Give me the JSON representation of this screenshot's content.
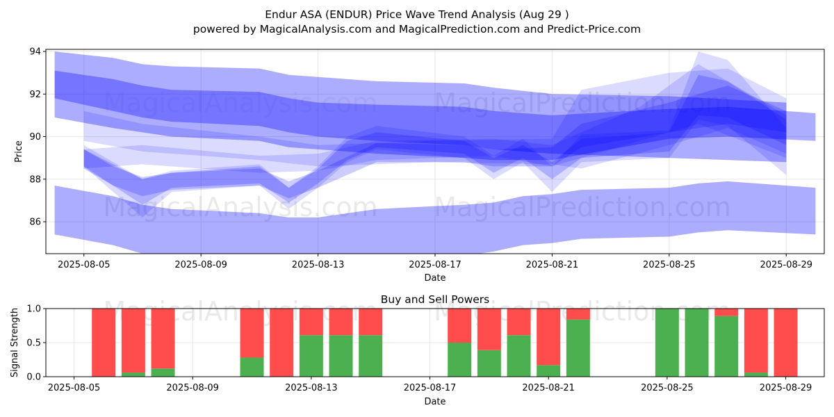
{
  "title_line1": "Endur ASA (ENDUR) Price Wave Trend Analysis (Aug 29 )",
  "title_line2": "powered by MagicalAnalysis.com and MagicalPrediction.com and Predict-Price.com",
  "watermarks": [
    "MagicalAnalysis.com",
    "MagicalPrediction.com"
  ],
  "colors": {
    "band": "#0000ff",
    "buy": "#4caf50",
    "sell": "#ff4d4d"
  },
  "chart_data": [
    {
      "type": "area",
      "title": "",
      "xlabel": "Date",
      "ylabel": "Price",
      "x_ticks": [
        "2025-08-05",
        "2025-08-09",
        "2025-08-13",
        "2025-08-17",
        "2025-08-21",
        "2025-08-25",
        "2025-08-29"
      ],
      "y_ticks": [
        86,
        88,
        90,
        92,
        94
      ],
      "xlim": [
        "2025-08-04",
        "2025-08-30"
      ],
      "ylim": [
        84.5,
        94.1
      ],
      "grid": true,
      "series": [
        {
          "opacity": 0.32,
          "points": [
            {
              "x": "2025-08-04",
              "lo": 91.8,
              "hi": 94.0
            },
            {
              "x": "2025-08-06",
              "lo": 91.2,
              "hi": 93.7
            },
            {
              "x": "2025-08-07",
              "lo": 90.9,
              "hi": 93.4
            },
            {
              "x": "2025-08-08",
              "lo": 90.7,
              "hi": 93.3
            },
            {
              "x": "2025-08-11",
              "lo": 90.5,
              "hi": 93.2
            },
            {
              "x": "2025-08-12",
              "lo": 90.2,
              "hi": 92.9
            },
            {
              "x": "2025-08-13",
              "lo": 90.0,
              "hi": 92.8
            },
            {
              "x": "2025-08-15",
              "lo": 89.8,
              "hi": 92.6
            },
            {
              "x": "2025-08-18",
              "lo": 89.6,
              "hi": 92.5
            },
            {
              "x": "2025-08-19",
              "lo": 89.4,
              "hi": 92.3
            },
            {
              "x": "2025-08-21",
              "lo": 89.2,
              "hi": 92.0
            },
            {
              "x": "2025-08-25",
              "lo": 89.0,
              "hi": 91.9
            },
            {
              "x": "2025-08-29",
              "lo": 88.8,
              "hi": 91.6
            }
          ]
        },
        {
          "opacity": 0.32,
          "points": [
            {
              "x": "2025-08-04",
              "lo": 90.9,
              "hi": 93.1
            },
            {
              "x": "2025-08-06",
              "lo": 90.4,
              "hi": 92.7
            },
            {
              "x": "2025-08-07",
              "lo": 90.2,
              "hi": 92.4
            },
            {
              "x": "2025-08-08",
              "lo": 90.0,
              "hi": 92.2
            },
            {
              "x": "2025-08-11",
              "lo": 89.8,
              "hi": 92.1
            },
            {
              "x": "2025-08-12",
              "lo": 89.5,
              "hi": 91.8
            },
            {
              "x": "2025-08-13",
              "lo": 89.4,
              "hi": 91.6
            },
            {
              "x": "2025-08-15",
              "lo": 89.2,
              "hi": 91.5
            },
            {
              "x": "2025-08-18",
              "lo": 89.0,
              "hi": 91.4
            },
            {
              "x": "2025-08-19",
              "lo": 88.9,
              "hi": 91.2
            },
            {
              "x": "2025-08-21",
              "lo": 88.9,
              "hi": 91.0
            },
            {
              "x": "2025-08-25",
              "lo": 89.9,
              "hi": 91.3
            },
            {
              "x": "2025-08-27",
              "lo": 90.0,
              "hi": 91.4
            },
            {
              "x": "2025-08-30",
              "lo": 89.8,
              "hi": 91.1
            }
          ]
        },
        {
          "opacity": 0.32,
          "points": [
            {
              "x": "2025-08-04",
              "lo": 85.4,
              "hi": 87.7
            },
            {
              "x": "2025-08-06",
              "lo": 84.9,
              "hi": 87.2
            },
            {
              "x": "2025-08-07",
              "lo": 84.5,
              "hi": 86.8
            },
            {
              "x": "2025-08-08",
              "lo": 84.3,
              "hi": 86.6
            },
            {
              "x": "2025-08-11",
              "lo": 84.2,
              "hi": 86.4
            },
            {
              "x": "2025-08-12",
              "lo": 84.0,
              "hi": 86.2
            },
            {
              "x": "2025-08-13",
              "lo": 84.0,
              "hi": 86.2
            },
            {
              "x": "2025-08-15",
              "lo": 84.2,
              "hi": 86.6
            },
            {
              "x": "2025-08-18",
              "lo": 84.4,
              "hi": 86.8
            },
            {
              "x": "2025-08-19",
              "lo": 84.6,
              "hi": 86.9
            },
            {
              "x": "2025-08-20",
              "lo": 84.9,
              "hi": 87.2
            },
            {
              "x": "2025-08-21",
              "lo": 85.0,
              "hi": 87.3
            },
            {
              "x": "2025-08-22",
              "lo": 85.2,
              "hi": 87.5
            },
            {
              "x": "2025-08-25",
              "lo": 85.3,
              "hi": 87.6
            },
            {
              "x": "2025-08-26",
              "lo": 85.5,
              "hi": 87.8
            },
            {
              "x": "2025-08-27",
              "lo": 85.6,
              "hi": 87.9
            },
            {
              "x": "2025-08-30",
              "lo": 85.4,
              "hi": 87.6
            }
          ]
        },
        {
          "opacity": 0.14,
          "points": [
            {
              "x": "2025-08-05",
              "lo": 89.8,
              "hi": 91.2
            },
            {
              "x": "2025-08-07",
              "lo": 89.3,
              "hi": 90.6
            },
            {
              "x": "2025-08-11",
              "lo": 88.9,
              "hi": 90.0
            },
            {
              "x": "2025-08-13",
              "lo": 88.6,
              "hi": 89.6
            },
            {
              "x": "2025-08-17",
              "lo": 88.8,
              "hi": 89.8
            },
            {
              "x": "2025-08-21",
              "lo": 88.7,
              "hi": 89.9
            },
            {
              "x": "2025-08-22",
              "lo": 88.5,
              "hi": 92.2
            },
            {
              "x": "2025-08-25",
              "lo": 89.6,
              "hi": 93.0
            },
            {
              "x": "2025-08-27",
              "lo": 90.4,
              "hi": 93.2
            },
            {
              "x": "2025-08-29",
              "lo": 89.2,
              "hi": 91.8
            }
          ]
        },
        {
          "opacity": 0.14,
          "points": [
            {
              "x": "2025-08-05",
              "lo": 88.5,
              "hi": 89.4
            },
            {
              "x": "2025-08-07",
              "lo": 88.7,
              "hi": 89.6
            },
            {
              "x": "2025-08-11",
              "lo": 88.3,
              "hi": 89.1
            },
            {
              "x": "2025-08-13",
              "lo": 88.4,
              "hi": 89.2
            },
            {
              "x": "2025-08-15",
              "lo": 88.9,
              "hi": 89.8
            },
            {
              "x": "2025-08-19",
              "lo": 89.1,
              "hi": 89.9
            },
            {
              "x": "2025-08-21",
              "lo": 88.6,
              "hi": 89.6
            },
            {
              "x": "2025-08-24",
              "lo": 89.8,
              "hi": 91.4
            },
            {
              "x": "2025-08-26",
              "lo": 90.6,
              "hi": 93.4
            },
            {
              "x": "2025-08-29",
              "lo": 89.0,
              "hi": 91.0
            }
          ]
        },
        {
          "opacity": 0.14,
          "points": [
            {
              "x": "2025-08-05",
              "lo": 88.6,
              "hi": 89.6
            },
            {
              "x": "2025-08-07",
              "lo": 86.2,
              "hi": 88.0
            },
            {
              "x": "2025-08-08",
              "lo": 87.4,
              "hi": 88.4
            },
            {
              "x": "2025-08-11",
              "lo": 87.7,
              "hi": 88.7
            },
            {
              "x": "2025-08-12",
              "lo": 86.6,
              "hi": 87.6
            },
            {
              "x": "2025-08-13",
              "lo": 87.6,
              "hi": 88.6
            },
            {
              "x": "2025-08-14",
              "lo": 88.8,
              "hi": 90.0
            },
            {
              "x": "2025-08-15",
              "lo": 89.4,
              "hi": 90.5
            },
            {
              "x": "2025-08-18",
              "lo": 89.0,
              "hi": 90.0
            },
            {
              "x": "2025-08-19",
              "lo": 88.0,
              "hi": 89.1
            },
            {
              "x": "2025-08-20",
              "lo": 88.8,
              "hi": 89.9
            },
            {
              "x": "2025-08-21",
              "lo": 87.4,
              "hi": 88.6
            },
            {
              "x": "2025-08-22",
              "lo": 88.8,
              "hi": 90.1
            },
            {
              "x": "2025-08-25",
              "lo": 89.0,
              "hi": 90.3
            },
            {
              "x": "2025-08-26",
              "lo": 90.8,
              "hi": 94.0
            },
            {
              "x": "2025-08-27",
              "lo": 90.5,
              "hi": 93.6
            },
            {
              "x": "2025-08-29",
              "lo": 88.2,
              "hi": 90.4
            }
          ]
        },
        {
          "opacity": 0.2,
          "points": [
            {
              "x": "2025-08-05",
              "lo": 88.6,
              "hi": 89.4
            },
            {
              "x": "2025-08-07",
              "lo": 86.8,
              "hi": 88.0
            },
            {
              "x": "2025-08-08",
              "lo": 87.6,
              "hi": 88.3
            },
            {
              "x": "2025-08-11",
              "lo": 87.8,
              "hi": 88.6
            },
            {
              "x": "2025-08-12",
              "lo": 86.9,
              "hi": 87.6
            },
            {
              "x": "2025-08-13",
              "lo": 87.8,
              "hi": 88.5
            },
            {
              "x": "2025-08-14",
              "lo": 88.9,
              "hi": 89.8
            },
            {
              "x": "2025-08-15",
              "lo": 89.5,
              "hi": 90.2
            },
            {
              "x": "2025-08-18",
              "lo": 89.2,
              "hi": 89.8
            },
            {
              "x": "2025-08-19",
              "lo": 88.3,
              "hi": 89.0
            },
            {
              "x": "2025-08-20",
              "lo": 89.0,
              "hi": 89.6
            },
            {
              "x": "2025-08-21",
              "lo": 88.0,
              "hi": 88.8
            },
            {
              "x": "2025-08-22",
              "lo": 89.0,
              "hi": 89.9
            },
            {
              "x": "2025-08-25",
              "lo": 89.3,
              "hi": 90.2
            },
            {
              "x": "2025-08-26",
              "lo": 91.0,
              "hi": 92.9
            },
            {
              "x": "2025-08-27",
              "lo": 90.9,
              "hi": 92.6
            },
            {
              "x": "2025-08-29",
              "lo": 89.6,
              "hi": 90.8
            }
          ]
        },
        {
          "opacity": 0.2,
          "points": [
            {
              "x": "2025-08-05",
              "lo": 88.5,
              "hi": 89.4
            },
            {
              "x": "2025-08-06",
              "lo": 87.7,
              "hi": 88.6
            },
            {
              "x": "2025-08-07",
              "lo": 87.2,
              "hi": 88.1
            },
            {
              "x": "2025-08-08",
              "lo": 87.5,
              "hi": 88.3
            },
            {
              "x": "2025-08-11",
              "lo": 87.7,
              "hi": 88.5
            },
            {
              "x": "2025-08-12",
              "lo": 87.1,
              "hi": 87.9
            },
            {
              "x": "2025-08-13",
              "lo": 87.6,
              "hi": 88.4
            },
            {
              "x": "2025-08-15",
              "lo": 88.8,
              "hi": 89.7
            },
            {
              "x": "2025-08-18",
              "lo": 88.8,
              "hi": 89.6
            },
            {
              "x": "2025-08-19",
              "lo": 88.6,
              "hi": 89.4
            },
            {
              "x": "2025-08-21",
              "lo": 88.6,
              "hi": 89.5
            },
            {
              "x": "2025-08-22",
              "lo": 89.5,
              "hi": 90.6
            },
            {
              "x": "2025-08-25",
              "lo": 90.2,
              "hi": 91.6
            },
            {
              "x": "2025-08-27",
              "lo": 90.6,
              "hi": 92.4
            },
            {
              "x": "2025-08-29",
              "lo": 90.2,
              "hi": 91.2
            }
          ]
        }
      ]
    },
    {
      "type": "bar",
      "title": "Buy and Sell Powers",
      "xlabel": "Date",
      "ylabel": "Signal Strength",
      "x_ticks": [
        "2025-08-05",
        "2025-08-09",
        "2025-08-13",
        "2025-08-17",
        "2025-08-21",
        "2025-08-25",
        "2025-08-29"
      ],
      "y_ticks": [
        "0.0",
        "0.5",
        "1.0"
      ],
      "xlim": [
        "2025-08-05",
        "2025-08-30"
      ],
      "ylim": [
        0,
        1
      ],
      "grid": true,
      "series": [
        {
          "name": "",
          "role": "buy",
          "color": "#4caf50"
        },
        {
          "name": "",
          "role": "sell",
          "color": "#ff4d4d"
        }
      ],
      "bars": [
        {
          "date": "2025-08-06",
          "buy": 0.0
        },
        {
          "date": "2025-08-07",
          "buy": 0.06
        },
        {
          "date": "2025-08-08",
          "buy": 0.12
        },
        {
          "date": "2025-08-11",
          "buy": 0.28
        },
        {
          "date": "2025-08-12",
          "buy": 0.0
        },
        {
          "date": "2025-08-13",
          "buy": 0.61
        },
        {
          "date": "2025-08-14",
          "buy": 0.61
        },
        {
          "date": "2025-08-15",
          "buy": 0.61
        },
        {
          "date": "2025-08-18",
          "buy": 0.5
        },
        {
          "date": "2025-08-19",
          "buy": 0.39
        },
        {
          "date": "2025-08-20",
          "buy": 0.61
        },
        {
          "date": "2025-08-21",
          "buy": 0.17
        },
        {
          "date": "2025-08-22",
          "buy": 0.84
        },
        {
          "date": "2025-08-25",
          "buy": 1.0
        },
        {
          "date": "2025-08-26",
          "buy": 1.0
        },
        {
          "date": "2025-08-27",
          "buy": 0.89
        },
        {
          "date": "2025-08-28",
          "buy": 0.06
        },
        {
          "date": "2025-08-29",
          "buy": 0.0
        }
      ]
    }
  ]
}
